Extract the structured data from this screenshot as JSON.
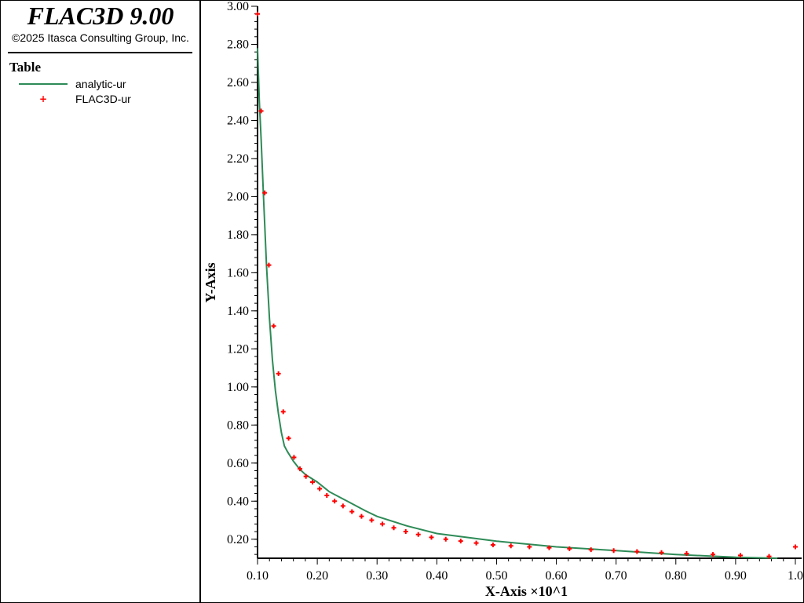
{
  "app": {
    "title": "FLAC3D 9.00",
    "copyright": "©2025 Itasca Consulting Group, Inc."
  },
  "legend": {
    "title": "Table",
    "items": [
      {
        "label": "analytic-ur",
        "color": "#2e8b57",
        "marker": "line"
      },
      {
        "label": "FLAC3D-ur",
        "color": "#ff0000",
        "marker": "+"
      }
    ]
  },
  "chart_data": {
    "type": "line",
    "xlabel": "X-Axis ×10^1",
    "ylabel": "Y-Axis",
    "xlim": [
      0.1,
      1.0
    ],
    "ylim": [
      0.1,
      3.0
    ],
    "x_ticks": [
      "0.10",
      "0.20",
      "0.30",
      "0.40",
      "0.50",
      "0.60",
      "0.70",
      "0.80",
      "0.90",
      "1.0"
    ],
    "y_ticks": [
      "0.20",
      "0.40",
      "0.60",
      "0.80",
      "1.00",
      "1.20",
      "1.40",
      "1.60",
      "1.80",
      "2.00",
      "2.20",
      "2.40",
      "2.60",
      "2.80",
      "3.00"
    ],
    "grid": false,
    "series": [
      {
        "name": "analytic-ur",
        "color": "#2e8b57",
        "style": "line",
        "x": [
          0.1,
          0.103,
          0.106,
          0.11,
          0.115,
          0.12,
          0.125,
          0.13,
          0.135,
          0.14,
          0.145,
          0.15,
          0.16,
          0.17,
          0.18,
          0.2,
          0.22,
          0.25,
          0.28,
          0.3,
          0.35,
          0.4,
          0.5,
          0.6,
          0.7,
          0.8,
          0.9,
          0.97
        ],
        "y": [
          2.78,
          2.5,
          2.3,
          2.0,
          1.64,
          1.36,
          1.14,
          0.98,
          0.86,
          0.76,
          0.69,
          0.66,
          0.61,
          0.57,
          0.54,
          0.5,
          0.45,
          0.4,
          0.35,
          0.32,
          0.27,
          0.23,
          0.19,
          0.16,
          0.14,
          0.12,
          0.105,
          0.1
        ]
      },
      {
        "name": "FLAC3D-ur",
        "color": "#ff0000",
        "style": "plus",
        "x": [
          0.1,
          0.106,
          0.112,
          0.119,
          0.127,
          0.135,
          0.143,
          0.152,
          0.161,
          0.171,
          0.181,
          0.192,
          0.204,
          0.216,
          0.229,
          0.243,
          0.258,
          0.274,
          0.291,
          0.309,
          0.328,
          0.348,
          0.369,
          0.391,
          0.415,
          0.44,
          0.466,
          0.494,
          0.524,
          0.555,
          0.588,
          0.622,
          0.658,
          0.696,
          0.735,
          0.776,
          0.818,
          0.862,
          0.908,
          0.956,
          1.0
        ],
        "y": [
          2.96,
          2.45,
          2.02,
          1.64,
          1.32,
          1.07,
          0.87,
          0.73,
          0.63,
          0.57,
          0.53,
          0.5,
          0.465,
          0.43,
          0.4,
          0.375,
          0.345,
          0.32,
          0.3,
          0.28,
          0.26,
          0.24,
          0.225,
          0.21,
          0.2,
          0.19,
          0.18,
          0.17,
          0.165,
          0.16,
          0.155,
          0.15,
          0.145,
          0.14,
          0.135,
          0.13,
          0.125,
          0.12,
          0.115,
          0.11,
          0.16
        ]
      }
    ]
  }
}
